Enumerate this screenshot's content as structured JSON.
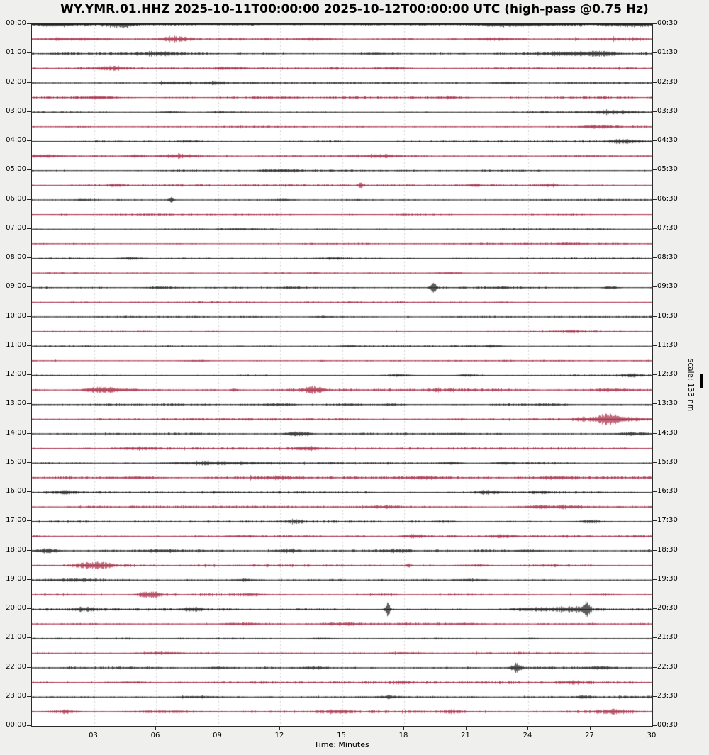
{
  "title": "WY.YMR.01.HHZ 2025-10-11T00:00:00 2025-10-12T00:00:00 UTC (high-pass @0.75 Hz)",
  "x_axis": {
    "label": "Time: Minutes",
    "tick_labels": [
      "03",
      "06",
      "09",
      "12",
      "15",
      "18",
      "21",
      "24",
      "27",
      "30"
    ],
    "tick_minutes": [
      3,
      6,
      9,
      12,
      15,
      18,
      21,
      24,
      27,
      30
    ],
    "range_minutes": [
      0,
      30
    ]
  },
  "scale": {
    "label": "scale: 133 nm"
  },
  "colors": {
    "background": "#efefed",
    "plot_background": "#ffffff",
    "frame": "#2a2a2a",
    "grid": "#c9c9c9",
    "trace_black": "#161616",
    "trace_red": "#a4203c"
  },
  "chart_data": {
    "type": "line",
    "subtype": "helicorder-dayplot",
    "station": "WY.YMR.01.HHZ",
    "time_range_utc": [
      "2025-10-11T00:00:00",
      "2025-10-12T00:00:00"
    ],
    "filter": "high-pass @0.75 Hz",
    "minutes_per_line": 30,
    "lines_per_hour": 2,
    "amplitude_scale_nm": 133,
    "left_labels": [
      "00:00",
      "01:00",
      "02:00",
      "03:00",
      "04:00",
      "05:00",
      "06:00",
      "07:00",
      "08:00",
      "09:00",
      "10:00",
      "11:00",
      "12:00",
      "13:00",
      "14:00",
      "15:00",
      "16:00",
      "17:00",
      "18:00",
      "19:00",
      "20:00",
      "21:00",
      "22:00",
      "23:00",
      "00:00"
    ],
    "right_labels": [
      "00:30",
      "01:30",
      "02:30",
      "03:30",
      "04:30",
      "05:30",
      "06:30",
      "07:30",
      "08:30",
      "09:30",
      "10:30",
      "11:30",
      "12:30",
      "13:30",
      "14:30",
      "15:30",
      "16:30",
      "17:30",
      "18:30",
      "19:30",
      "20:30",
      "21:30",
      "22:30",
      "23:30",
      "00:30"
    ],
    "event_format": "[minute_center, amplitude_px, width_sigma_minutes]",
    "rows": [
      {
        "utc_start": "00:00",
        "color": "black",
        "noise": 1.15,
        "events": [
          [
            0.9,
            2.2,
            0.7
          ],
          [
            4.3,
            3.6,
            0.35
          ],
          [
            23.2,
            1.8,
            1.2
          ],
          [
            29.0,
            1.6,
            0.5
          ]
        ]
      },
      {
        "utc_start": "00:30",
        "color": "red",
        "noise": 1.05,
        "events": [
          [
            2.3,
            1.8,
            0.9
          ],
          [
            6.9,
            2.8,
            0.4
          ],
          [
            13.8,
            1.4,
            0.6
          ],
          [
            22.4,
            1.6,
            0.8
          ]
        ]
      },
      {
        "utc_start": "01:00",
        "color": "black",
        "noise": 0.85,
        "events": [
          [
            6.1,
            1.9,
            0.7
          ],
          [
            16.5,
            1.3,
            0.6
          ],
          [
            25.9,
            1.9,
            1.0
          ],
          [
            27.6,
            2.2,
            0.5
          ]
        ]
      },
      {
        "utc_start": "01:30",
        "color": "red",
        "noise": 0.85,
        "events": [
          [
            3.8,
            2.4,
            0.45
          ],
          [
            9.5,
            1.3,
            0.5
          ],
          [
            17.2,
            1.4,
            0.6
          ]
        ]
      },
      {
        "utc_start": "02:00",
        "color": "black",
        "noise": 0.75,
        "events": [
          [
            6.8,
            2.1,
            0.5
          ],
          [
            8.9,
            1.7,
            0.4
          ],
          [
            22.9,
            1.5,
            0.5
          ]
        ]
      },
      {
        "utc_start": "02:30",
        "color": "red",
        "noise": 0.95,
        "events": [
          [
            3.4,
            1.5,
            0.7
          ],
          [
            12.0,
            1.2,
            0.8
          ],
          [
            20.0,
            1.2,
            0.8
          ]
        ]
      },
      {
        "utc_start": "03:00",
        "color": "black",
        "noise": 0.7,
        "events": [
          [
            6.7,
            1.4,
            0.4
          ],
          [
            9.2,
            1.3,
            0.4
          ],
          [
            28.1,
            2.2,
            0.7
          ]
        ]
      },
      {
        "utc_start": "03:30",
        "color": "red",
        "noise": 0.7,
        "events": [
          [
            27.3,
            2.4,
            0.5
          ]
        ]
      },
      {
        "utc_start": "04:00",
        "color": "black",
        "noise": 0.7,
        "events": [
          [
            7.6,
            1.5,
            0.4
          ],
          [
            28.8,
            2.6,
            0.6
          ]
        ]
      },
      {
        "utc_start": "04:30",
        "color": "red",
        "noise": 0.9,
        "events": [
          [
            0.6,
            2.0,
            0.7
          ],
          [
            5.0,
            1.8,
            0.3
          ],
          [
            6.9,
            2.0,
            0.5
          ],
          [
            16.8,
            1.2,
            0.5
          ]
        ]
      },
      {
        "utc_start": "05:00",
        "color": "black",
        "noise": 0.65,
        "events": [
          [
            11.9,
            1.9,
            0.7
          ]
        ]
      },
      {
        "utc_start": "05:30",
        "color": "red",
        "noise": 0.7,
        "events": [
          [
            4.0,
            1.6,
            0.25
          ],
          [
            15.9,
            3.8,
            0.1
          ],
          [
            21.3,
            1.4,
            0.3
          ],
          [
            25.1,
            1.4,
            0.25
          ]
        ]
      },
      {
        "utc_start": "06:00",
        "color": "black",
        "noise": 0.6,
        "events": [
          [
            2.5,
            1.3,
            0.25
          ],
          [
            6.7,
            4.2,
            0.09
          ],
          [
            12.2,
            1.0,
            0.3
          ]
        ]
      },
      {
        "utc_start": "06:30",
        "color": "red",
        "noise": 0.6,
        "events": []
      },
      {
        "utc_start": "07:00",
        "color": "black",
        "noise": 0.55,
        "events": [
          [
            10.0,
            0.9,
            0.5
          ]
        ]
      },
      {
        "utc_start": "07:30",
        "color": "red",
        "noise": 0.6,
        "events": [
          [
            26.0,
            1.1,
            0.5
          ]
        ]
      },
      {
        "utc_start": "08:00",
        "color": "black",
        "noise": 0.65,
        "events": [
          [
            4.8,
            1.7,
            0.5
          ],
          [
            14.5,
            1.0,
            0.4
          ]
        ]
      },
      {
        "utc_start": "08:30",
        "color": "red",
        "noise": 0.6,
        "events": [
          [
            20.0,
            1.0,
            0.5
          ]
        ]
      },
      {
        "utc_start": "09:00",
        "color": "black",
        "noise": 0.7,
        "events": [
          [
            6.2,
            1.2,
            0.5
          ],
          [
            12.5,
            1.2,
            0.4
          ],
          [
            19.4,
            9.5,
            0.1
          ],
          [
            22.7,
            1.6,
            0.35
          ],
          [
            28.0,
            1.9,
            0.25
          ]
        ]
      },
      {
        "utc_start": "09:30",
        "color": "red",
        "noise": 0.6,
        "events": []
      },
      {
        "utc_start": "10:00",
        "color": "black",
        "noise": 0.6,
        "events": [
          [
            14.0,
            1.0,
            0.4
          ]
        ]
      },
      {
        "utc_start": "10:30",
        "color": "red",
        "noise": 0.6,
        "events": [
          [
            25.9,
            1.5,
            0.6
          ]
        ]
      },
      {
        "utc_start": "11:00",
        "color": "black",
        "noise": 0.6,
        "events": [
          [
            15.3,
            1.4,
            0.35
          ],
          [
            22.3,
            1.7,
            0.35
          ]
        ]
      },
      {
        "utc_start": "11:30",
        "color": "red",
        "noise": 0.65,
        "events": [
          [
            8.0,
            1.0,
            0.5
          ]
        ]
      },
      {
        "utc_start": "12:00",
        "color": "black",
        "noise": 0.7,
        "events": [
          [
            17.7,
            1.7,
            0.5
          ],
          [
            21.1,
            1.8,
            0.4
          ],
          [
            29.0,
            1.8,
            0.4
          ]
        ]
      },
      {
        "utc_start": "12:30",
        "color": "red",
        "noise": 1.0,
        "events": [
          [
            3.3,
            4.2,
            0.55
          ],
          [
            4.6,
            1.8,
            0.5
          ],
          [
            9.8,
            2.4,
            0.12
          ],
          [
            13.6,
            3.8,
            0.4
          ],
          [
            19.6,
            2.8,
            0.08
          ],
          [
            28.1,
            1.6,
            0.5
          ]
        ]
      },
      {
        "utc_start": "13:00",
        "color": "black",
        "noise": 0.8,
        "events": [
          [
            11.9,
            1.6,
            0.5
          ],
          [
            15.3,
            1.4,
            0.4
          ],
          [
            17.4,
            1.4,
            0.4
          ],
          [
            25.0,
            1.2,
            0.5
          ]
        ]
      },
      {
        "utc_start": "13:30",
        "color": "red",
        "noise": 0.8,
        "events": [
          [
            26.6,
            2.2,
            0.4
          ],
          [
            27.8,
            6.5,
            0.4
          ],
          [
            28.9,
            2.8,
            0.7
          ]
        ]
      },
      {
        "utc_start": "14:00",
        "color": "black",
        "noise": 0.8,
        "events": [
          [
            12.9,
            3.2,
            0.45
          ],
          [
            20.5,
            1.3,
            0.5
          ],
          [
            29.0,
            2.0,
            0.6
          ]
        ]
      },
      {
        "utc_start": "14:30",
        "color": "red",
        "noise": 0.8,
        "events": [
          [
            5.0,
            1.2,
            0.6
          ],
          [
            13.3,
            2.3,
            0.45
          ]
        ]
      },
      {
        "utc_start": "15:00",
        "color": "black",
        "noise": 0.8,
        "events": [
          [
            9.0,
            2.2,
            1.5
          ],
          [
            20.3,
            1.7,
            0.35
          ],
          [
            22.9,
            1.9,
            0.4
          ]
        ]
      },
      {
        "utc_start": "15:30",
        "color": "red",
        "noise": 1.0,
        "events": [
          [
            5.0,
            1.4,
            0.8
          ],
          [
            12.0,
            1.3,
            0.8
          ],
          [
            19.0,
            1.5,
            0.6
          ],
          [
            25.5,
            1.5,
            0.6
          ]
        ]
      },
      {
        "utc_start": "16:00",
        "color": "black",
        "noise": 0.8,
        "events": [
          [
            1.6,
            1.9,
            0.5
          ],
          [
            9.0,
            1.2,
            0.5
          ],
          [
            22.1,
            1.9,
            0.5
          ],
          [
            24.6,
            1.5,
            0.4
          ]
        ]
      },
      {
        "utc_start": "16:30",
        "color": "red",
        "noise": 0.8,
        "events": [
          [
            17.0,
            1.2,
            0.5
          ],
          [
            24.5,
            1.9,
            0.5
          ],
          [
            26.0,
            1.6,
            0.4
          ]
        ]
      },
      {
        "utc_start": "17:00",
        "color": "black",
        "noise": 0.85,
        "events": [
          [
            12.7,
            2.0,
            0.4
          ],
          [
            20.0,
            1.7,
            0.4
          ],
          [
            27.0,
            1.9,
            0.45
          ]
        ]
      },
      {
        "utc_start": "17:30",
        "color": "red",
        "noise": 0.9,
        "events": [
          [
            10.0,
            1.5,
            0.5
          ],
          [
            18.4,
            2.6,
            0.35
          ],
          [
            23.0,
            1.3,
            0.5
          ]
        ]
      },
      {
        "utc_start": "18:00",
        "color": "black",
        "noise": 1.0,
        "events": [
          [
            0.7,
            2.8,
            0.4
          ],
          [
            6.2,
            1.7,
            0.5
          ],
          [
            12.4,
            2.0,
            0.4
          ],
          [
            17.5,
            1.9,
            0.45
          ],
          [
            24.0,
            1.4,
            0.6
          ]
        ]
      },
      {
        "utc_start": "18:30",
        "color": "red",
        "noise": 1.0,
        "events": [
          [
            3.1,
            4.2,
            0.6
          ],
          [
            18.2,
            2.9,
            0.1
          ],
          [
            21.5,
            1.5,
            0.5
          ],
          [
            25.0,
            1.5,
            0.5
          ]
        ]
      },
      {
        "utc_start": "19:00",
        "color": "black",
        "noise": 0.9,
        "events": [
          [
            2.0,
            1.8,
            0.7
          ],
          [
            10.3,
            1.4,
            0.5
          ],
          [
            21.0,
            1.3,
            0.5
          ]
        ]
      },
      {
        "utc_start": "19:30",
        "color": "red",
        "noise": 0.9,
        "events": [
          [
            5.6,
            4.6,
            0.4
          ],
          [
            10.6,
            1.7,
            0.4
          ],
          [
            17.0,
            1.3,
            0.5
          ],
          [
            27.5,
            1.4,
            0.5
          ]
        ]
      },
      {
        "utc_start": "20:00",
        "color": "black",
        "noise": 0.9,
        "events": [
          [
            2.6,
            1.7,
            0.5
          ],
          [
            7.8,
            1.7,
            0.4
          ],
          [
            17.2,
            10.5,
            0.09
          ],
          [
            24.2,
            1.9,
            0.9
          ],
          [
            26.2,
            2.8,
            0.6
          ],
          [
            26.8,
            9.5,
            0.12
          ]
        ]
      },
      {
        "utc_start": "20:30",
        "color": "red",
        "noise": 0.9,
        "events": [
          [
            10.0,
            1.4,
            0.6
          ],
          [
            15.0,
            1.2,
            0.6
          ],
          [
            21.0,
            1.4,
            0.5
          ]
        ]
      },
      {
        "utc_start": "21:00",
        "color": "black",
        "noise": 0.7,
        "events": [
          [
            14.0,
            1.2,
            0.4
          ],
          [
            24.0,
            1.1,
            0.4
          ]
        ]
      },
      {
        "utc_start": "21:30",
        "color": "red",
        "noise": 0.9,
        "events": [
          [
            6.0,
            1.2,
            0.7
          ],
          [
            18.0,
            1.2,
            0.7
          ]
        ]
      },
      {
        "utc_start": "22:00",
        "color": "black",
        "noise": 0.9,
        "events": [
          [
            9.1,
            1.6,
            0.5
          ],
          [
            13.6,
            1.6,
            0.4
          ],
          [
            23.4,
            7.0,
            0.18
          ],
          [
            27.5,
            2.0,
            0.45
          ]
        ]
      },
      {
        "utc_start": "22:30",
        "color": "red",
        "noise": 0.9,
        "events": [
          [
            5.0,
            1.3,
            0.6
          ],
          [
            17.9,
            1.7,
            0.35
          ],
          [
            26.0,
            1.3,
            0.5
          ]
        ]
      },
      {
        "utc_start": "23:00",
        "color": "black",
        "noise": 0.8,
        "events": [
          [
            8.0,
            1.2,
            0.5
          ],
          [
            17.3,
            1.8,
            0.4
          ],
          [
            26.7,
            1.6,
            0.35
          ]
        ]
      },
      {
        "utc_start": "23:30",
        "color": "red",
        "noise": 1.0,
        "events": [
          [
            1.5,
            2.3,
            0.5
          ],
          [
            6.5,
            1.7,
            1.2
          ],
          [
            14.8,
            2.3,
            0.4
          ],
          [
            20.4,
            2.0,
            0.4
          ],
          [
            28.1,
            2.2,
            0.7
          ]
        ]
      }
    ]
  }
}
